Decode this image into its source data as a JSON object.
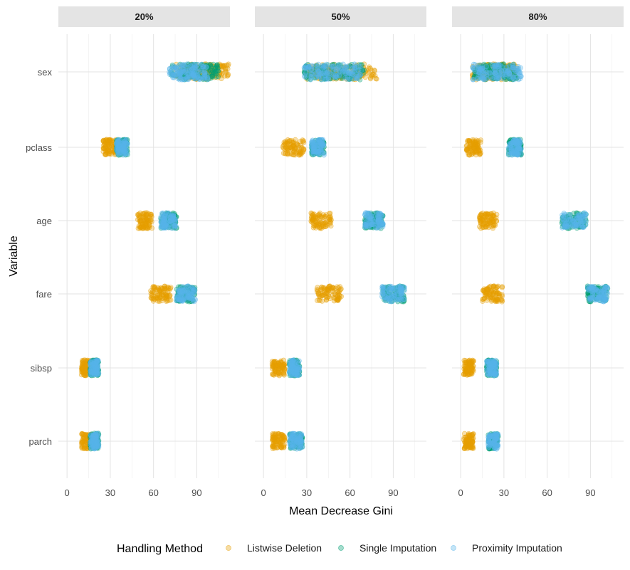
{
  "chart_data": {
    "type": "scatter",
    "title": "",
    "xlabel": "Mean Decrease Gini",
    "ylabel": "Variable",
    "xlim": [
      -6,
      113
    ],
    "x_ticks": [
      "0",
      "30",
      "60",
      "90"
    ],
    "x_tick_values": [
      0,
      30,
      60,
      90
    ],
    "grid": true,
    "legend_position": "bottom",
    "legend_title": "Handling Method",
    "variables": [
      "sex",
      "pclass",
      "age",
      "fare",
      "sibsp",
      "parch"
    ],
    "methods": [
      {
        "name": "Listwise Deletion",
        "color": "#E69F00"
      },
      {
        "name": "Single Imputation",
        "color": "#009E73"
      },
      {
        "name": "Proximity Imputation",
        "color": "#56B4E9"
      }
    ],
    "panels": [
      {
        "label": "20%",
        "ranges": {
          "sex": [
            [
              75,
              112
            ],
            [
              72,
              105
            ],
            [
              71,
              98
            ]
          ],
          "pclass": [
            [
              25,
              34
            ],
            [
              34,
              42
            ],
            [
              34,
              42
            ]
          ],
          "age": [
            [
              49,
              59
            ],
            [
              65,
              76
            ],
            [
              65,
              76
            ]
          ],
          "fare": [
            [
              58,
              72
            ],
            [
              76,
              89
            ],
            [
              76,
              89
            ]
          ],
          "sibsp": [
            [
              10,
              17
            ],
            [
              16,
              22
            ],
            [
              16,
              22
            ]
          ],
          "parch": [
            [
              10,
              17
            ],
            [
              16,
              22
            ],
            [
              16,
              22
            ]
          ]
        }
      },
      {
        "label": "50%",
        "ranges": {
          "sex": [
            [
              30,
              79
            ],
            [
              28,
              70
            ],
            [
              28,
              68
            ]
          ],
          "pclass": [
            [
              13,
              28
            ],
            [
              33,
              42
            ],
            [
              33,
              42
            ]
          ],
          "age": [
            [
              33,
              47
            ],
            [
              70,
              83
            ],
            [
              70,
              83
            ]
          ],
          "fare": [
            [
              37,
              54
            ],
            [
              82,
              98
            ],
            [
              82,
              98
            ]
          ],
          "sibsp": [
            [
              6,
              15
            ],
            [
              18,
              25
            ],
            [
              18,
              25
            ]
          ],
          "parch": [
            [
              6,
              15
            ],
            [
              18,
              27
            ],
            [
              18,
              27
            ]
          ]
        }
      },
      {
        "label": "80%",
        "ranges": {
          "sex": [
            [
              8,
              39
            ],
            [
              9,
              39
            ],
            [
              8,
              42
            ]
          ],
          "pclass": [
            [
              4,
              14
            ],
            [
              33,
              42
            ],
            [
              33,
              42
            ]
          ],
          "age": [
            [
              13,
              25
            ],
            [
              70,
              87
            ],
            [
              70,
              87
            ]
          ],
          "fare": [
            [
              15,
              29
            ],
            [
              88,
              102
            ],
            [
              88,
              102
            ]
          ],
          "sibsp": [
            [
              2,
              9
            ],
            [
              18,
              25
            ],
            [
              18,
              25
            ]
          ],
          "parch": [
            [
              2,
              9
            ],
            [
              19,
              26
            ],
            [
              19,
              26
            ]
          ]
        }
      }
    ]
  }
}
